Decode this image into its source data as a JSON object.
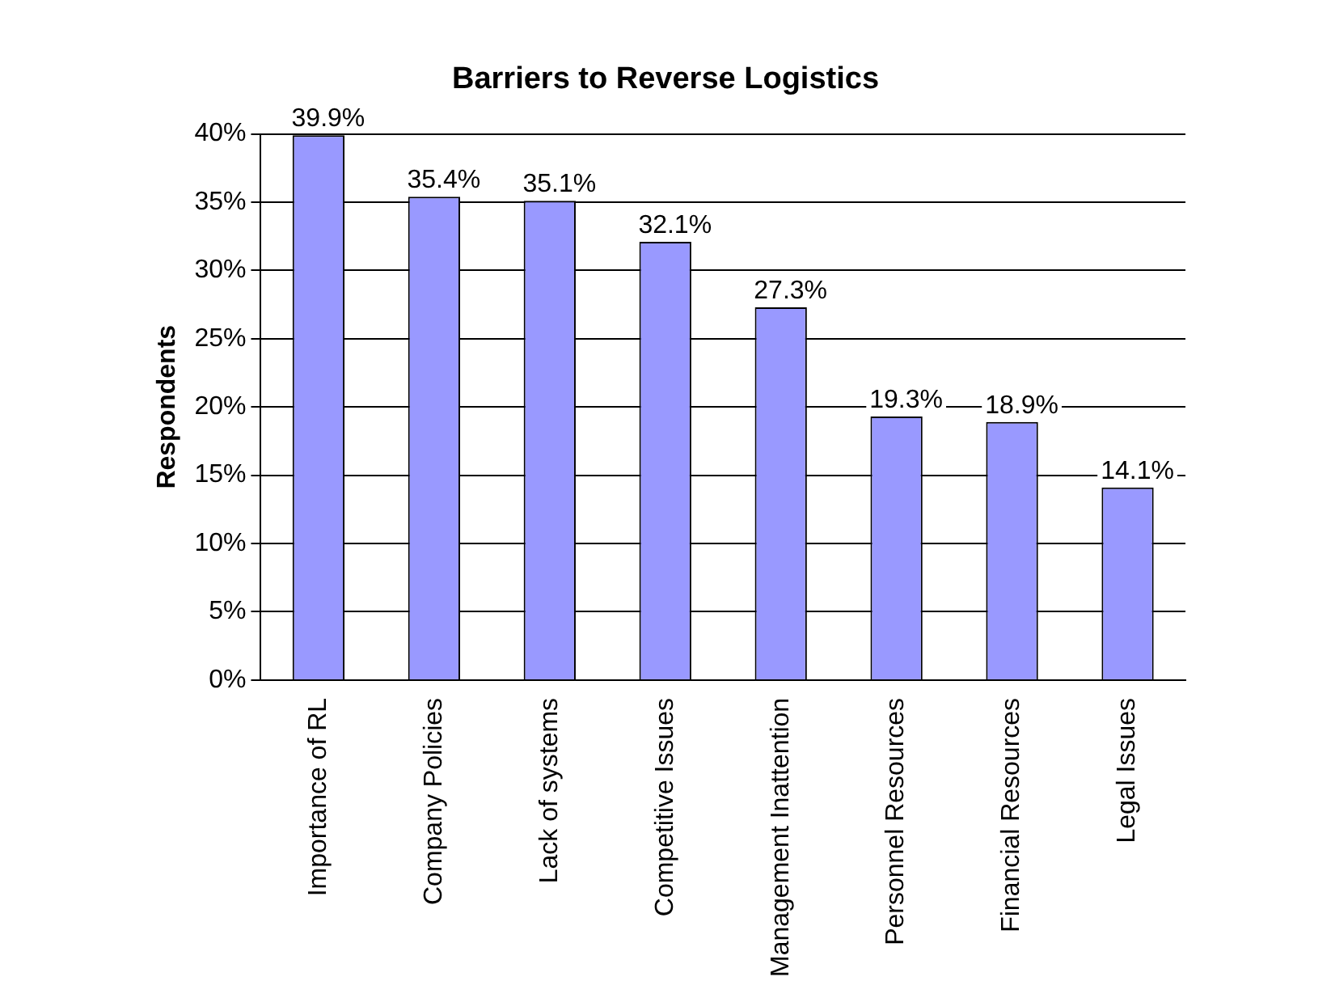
{
  "chart_data": {
    "type": "bar",
    "title": "Barriers to Reverse Logistics",
    "ylabel": "Respondents",
    "categories": [
      "Importance of RL",
      "Company Policies",
      "Lack of systems",
      "Competitive Issues",
      "Management Inattention",
      "Personnel Resources",
      "Financial Resources",
      "Legal Issues"
    ],
    "values": [
      39.9,
      35.4,
      35.1,
      32.1,
      27.3,
      19.3,
      18.9,
      14.1
    ],
    "value_labels": [
      "39.9%",
      "35.4%",
      "35.1%",
      "32.1%",
      "27.3%",
      "19.3%",
      "18.9%",
      "14.1%"
    ],
    "color": "#9999ff",
    "ylim": [
      0,
      40
    ],
    "yticks": [
      {
        "value": 0,
        "label": "0%"
      },
      {
        "value": 5,
        "label": "5%"
      },
      {
        "value": 10,
        "label": "10%"
      },
      {
        "value": 15,
        "label": "15%"
      },
      {
        "value": 20,
        "label": "20%"
      },
      {
        "value": 25,
        "label": "25%"
      },
      {
        "value": 30,
        "label": "30%"
      },
      {
        "value": 35,
        "label": "35%"
      },
      {
        "value": 40,
        "label": "40%"
      }
    ],
    "grid": "y",
    "legend": false
  }
}
